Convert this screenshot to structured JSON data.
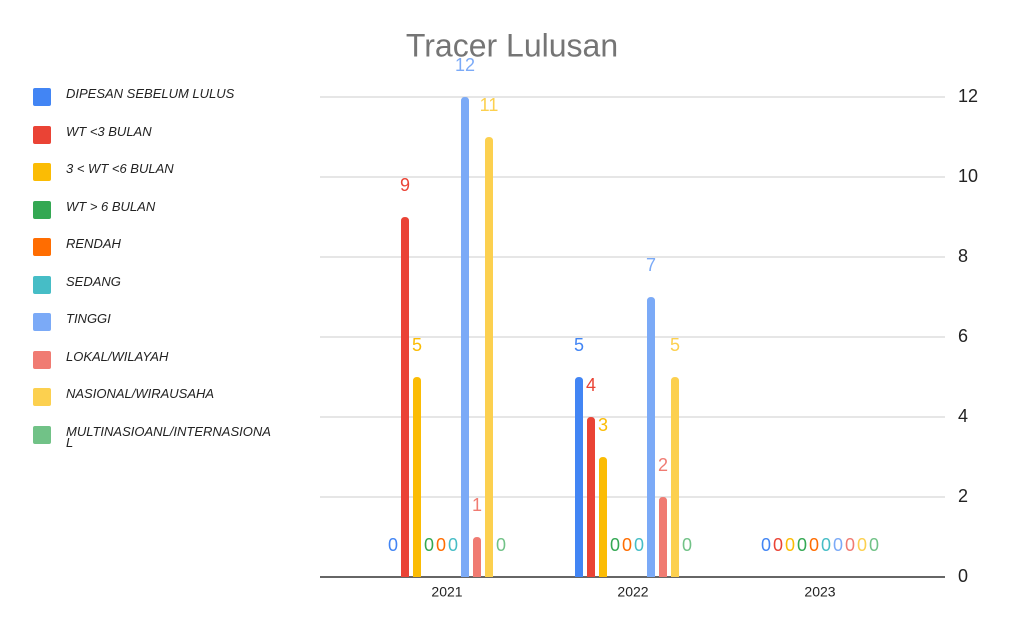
{
  "chart_data": {
    "type": "bar",
    "title": "Tracer Lulusan",
    "categories": [
      "2021",
      "2022",
      "2023"
    ],
    "series": [
      {
        "name": "DIPESAN SEBELUM LULUS",
        "color": "#4285f4",
        "values": [
          0,
          5,
          0
        ]
      },
      {
        "name": "WT <3 BULAN",
        "color": "#ea4335",
        "values": [
          9,
          4,
          0
        ]
      },
      {
        "name": "3 < WT <6 BULAN",
        "color": "#fbbc04",
        "values": [
          5,
          3,
          0
        ]
      },
      {
        "name": "WT > 6 BULAN",
        "color": "#34a853",
        "values": [
          0,
          0,
          0
        ]
      },
      {
        "name": "RENDAH",
        "color": "#ff6d01",
        "values": [
          0,
          0,
          0
        ]
      },
      {
        "name": "SEDANG",
        "color": "#46bdc6",
        "values": [
          0,
          0,
          0
        ]
      },
      {
        "name": "TINGGI",
        "color": "#7baaf7",
        "values": [
          12,
          7,
          0
        ]
      },
      {
        "name": "LOKAL/WILAYAH",
        "color": "#f07b72",
        "values": [
          1,
          2,
          0
        ]
      },
      {
        "name": "NASIONAL/WIRAUSAHA",
        "color": "#fcd04f",
        "values": [
          11,
          5,
          0
        ]
      },
      {
        "name": "MULTINASIOANL/INTERNASIONAL",
        "color": "#71c287",
        "values": [
          0,
          0,
          0
        ]
      }
    ],
    "ylim": [
      0,
      12
    ],
    "yticks": [
      0,
      2,
      4,
      6,
      8,
      10,
      12
    ],
    "grid": true,
    "legend": "left"
  }
}
